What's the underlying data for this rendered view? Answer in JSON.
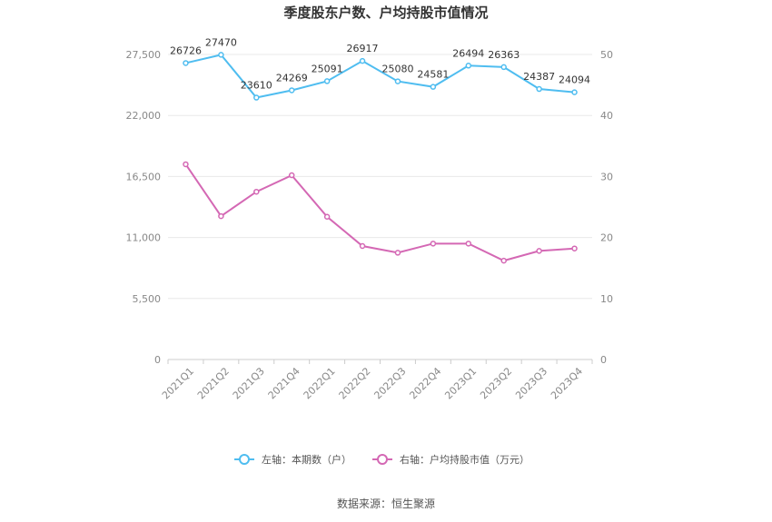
{
  "chart_data": {
    "type": "line",
    "title": "季度股东户数、户均持股市值情况",
    "categories": [
      "2021Q1",
      "2021Q2",
      "2021Q3",
      "2021Q4",
      "2022Q1",
      "2022Q2",
      "2022Q3",
      "2022Q4",
      "2023Q1",
      "2023Q2",
      "2023Q3",
      "2023Q4"
    ],
    "left_axis": {
      "ylim": [
        0,
        27500
      ],
      "ticks": [
        "0",
        "5,500",
        "11,000",
        "16,500",
        "22,000",
        "27,500"
      ]
    },
    "right_axis": {
      "ylim": [
        0,
        50
      ],
      "ticks": [
        "0",
        "10",
        "20",
        "30",
        "40",
        "50"
      ]
    },
    "series": [
      {
        "name": "左轴：本期数（户）",
        "axis": "left",
        "color": "#4fbdf0",
        "values": [
          26726,
          27470,
          23610,
          24269,
          25091,
          26917,
          25080,
          24581,
          26494,
          26363,
          24387,
          24094
        ],
        "labels": [
          "26726",
          "27470",
          "23610",
          "24269",
          "25091",
          "26917",
          "25080",
          "24581",
          "26494",
          "26363",
          "24387",
          "24094"
        ]
      },
      {
        "name": "右轴：户均持股市值（万元）",
        "axis": "right",
        "color": "#d468b4",
        "values": [
          32.0,
          23.5,
          27.5,
          30.2,
          23.4,
          18.6,
          17.5,
          19.0,
          19.0,
          16.2,
          17.8,
          18.2
        ]
      }
    ],
    "grid": true,
    "legend_position": "bottom"
  },
  "source": "数据来源：恒生聚源"
}
